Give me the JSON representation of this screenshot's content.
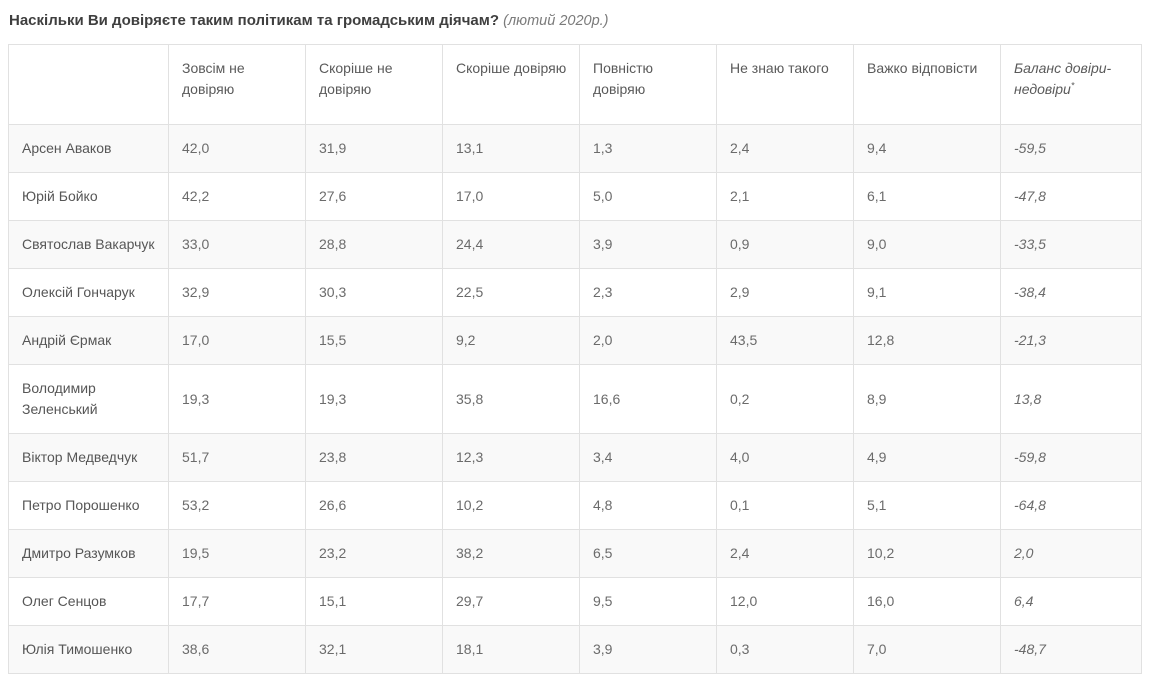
{
  "title": {
    "question": "Наскільки Ви довіряєте таким політикам та громадським діячам?",
    "date": "(лютий 2020р.)"
  },
  "colors": {
    "border": "#e1e1e1",
    "stripe": "#f9f9f9",
    "title_color": "#3f3f3f",
    "subtitle_color": "#7b7b7b",
    "header_color": "#5a5a5a",
    "name_color": "#565656",
    "value_color": "#6b6b6b"
  },
  "table": {
    "columns": [
      {
        "key": "name",
        "label": "",
        "italic": false,
        "asterisk": ""
      },
      {
        "key": "not-trust-at-all",
        "label": "Зовсім не довіряю",
        "italic": false,
        "asterisk": ""
      },
      {
        "key": "rather-not-trust",
        "label": "Скоріше не довіряю",
        "italic": false,
        "asterisk": ""
      },
      {
        "key": "rather-trust",
        "label": "Скоріше довіряю",
        "italic": false,
        "asterisk": ""
      },
      {
        "key": "fully-trust",
        "label": "Повністю довіряю",
        "italic": false,
        "asterisk": ""
      },
      {
        "key": "dont-know-person",
        "label": "Не знаю такого",
        "italic": false,
        "asterisk": ""
      },
      {
        "key": "hard-to-answer",
        "label": "Важко відповісти",
        "italic": false,
        "asterisk": ""
      },
      {
        "key": "trust-balance",
        "label": "Баланс довіри-недовіри",
        "italic": true,
        "asterisk": "*"
      }
    ],
    "rows": [
      {
        "name": "Арсен Аваков",
        "values": [
          "42,0",
          "31,9",
          "13,1",
          "1,3",
          "2,4",
          "9,4"
        ],
        "balance": "-59,5"
      },
      {
        "name": "Юрій Бойко",
        "values": [
          "42,2",
          "27,6",
          "17,0",
          "5,0",
          "2,1",
          "6,1"
        ],
        "balance": "-47,8"
      },
      {
        "name": "Святослав Вакарчук",
        "values": [
          "33,0",
          "28,8",
          "24,4",
          "3,9",
          "0,9",
          "9,0"
        ],
        "balance": "-33,5"
      },
      {
        "name": "Олексій Гончарук",
        "values": [
          "32,9",
          "30,3",
          "22,5",
          "2,3",
          "2,9",
          "9,1"
        ],
        "balance": "-38,4"
      },
      {
        "name": "Андрій Єрмак",
        "values": [
          "17,0",
          "15,5",
          "9,2",
          "2,0",
          "43,5",
          "12,8"
        ],
        "balance": "-21,3"
      },
      {
        "name": "Володимир Зеленський",
        "values": [
          "19,3",
          "19,3",
          "35,8",
          "16,6",
          "0,2",
          "8,9"
        ],
        "balance": "13,8"
      },
      {
        "name": "Віктор Медведчук",
        "values": [
          "51,7",
          "23,8",
          "12,3",
          "3,4",
          "4,0",
          "4,9"
        ],
        "balance": "-59,8"
      },
      {
        "name": "Петро Порошенко",
        "values": [
          "53,2",
          "26,6",
          "10,2",
          "4,8",
          "0,1",
          "5,1"
        ],
        "balance": "-64,8"
      },
      {
        "name": "Дмитро Разумков",
        "values": [
          "19,5",
          "23,2",
          "38,2",
          "6,5",
          "2,4",
          "10,2"
        ],
        "balance": "2,0"
      },
      {
        "name": "Олег Сенцов",
        "values": [
          "17,7",
          "15,1",
          "29,7",
          "9,5",
          "12,0",
          "16,0"
        ],
        "balance": "6,4"
      },
      {
        "name": "Юлія Тимошенко",
        "values": [
          "38,6",
          "32,1",
          "18,1",
          "3,9",
          "0,3",
          "7,0"
        ],
        "balance": "-48,7"
      }
    ]
  },
  "chart_data": {
    "type": "table",
    "title": "Наскільки Ви довіряєте таким політикам та громадським діячам? (лютий 2020р.)",
    "categories": [
      "Арсен Аваков",
      "Юрій Бойко",
      "Святослав Вакарчук",
      "Олексій Гончарук",
      "Андрій Єрмак",
      "Володимир Зеленський",
      "Віктор Медведчук",
      "Петро Порошенко",
      "Дмитро Разумков",
      "Олег Сенцов",
      "Юлія Тимошенко"
    ],
    "series": [
      {
        "name": "Зовсім не довіряю",
        "values": [
          42.0,
          42.2,
          33.0,
          32.9,
          17.0,
          19.3,
          51.7,
          53.2,
          19.5,
          17.7,
          38.6
        ]
      },
      {
        "name": "Скоріше не довіряю",
        "values": [
          31.9,
          27.6,
          28.8,
          30.3,
          15.5,
          19.3,
          23.8,
          26.6,
          23.2,
          15.1,
          32.1
        ]
      },
      {
        "name": "Скоріше довіряю",
        "values": [
          13.1,
          17.0,
          24.4,
          22.5,
          9.2,
          35.8,
          12.3,
          10.2,
          38.2,
          29.7,
          18.1
        ]
      },
      {
        "name": "Повністю довіряю",
        "values": [
          1.3,
          5.0,
          3.9,
          2.3,
          2.0,
          16.6,
          3.4,
          4.8,
          6.5,
          9.5,
          3.9
        ]
      },
      {
        "name": "Не знаю такого",
        "values": [
          2.4,
          2.1,
          0.9,
          2.9,
          43.5,
          0.2,
          4.0,
          0.1,
          2.4,
          12.0,
          0.3
        ]
      },
      {
        "name": "Важко відповісти",
        "values": [
          9.4,
          6.1,
          9.0,
          9.1,
          12.8,
          8.9,
          4.9,
          5.1,
          10.2,
          16.0,
          7.0
        ]
      },
      {
        "name": "Баланс довіри-недовіри*",
        "values": [
          -59.5,
          -47.8,
          -33.5,
          -38.4,
          -21.3,
          13.8,
          -59.8,
          -64.8,
          2.0,
          6.4,
          -48.7
        ]
      }
    ]
  }
}
